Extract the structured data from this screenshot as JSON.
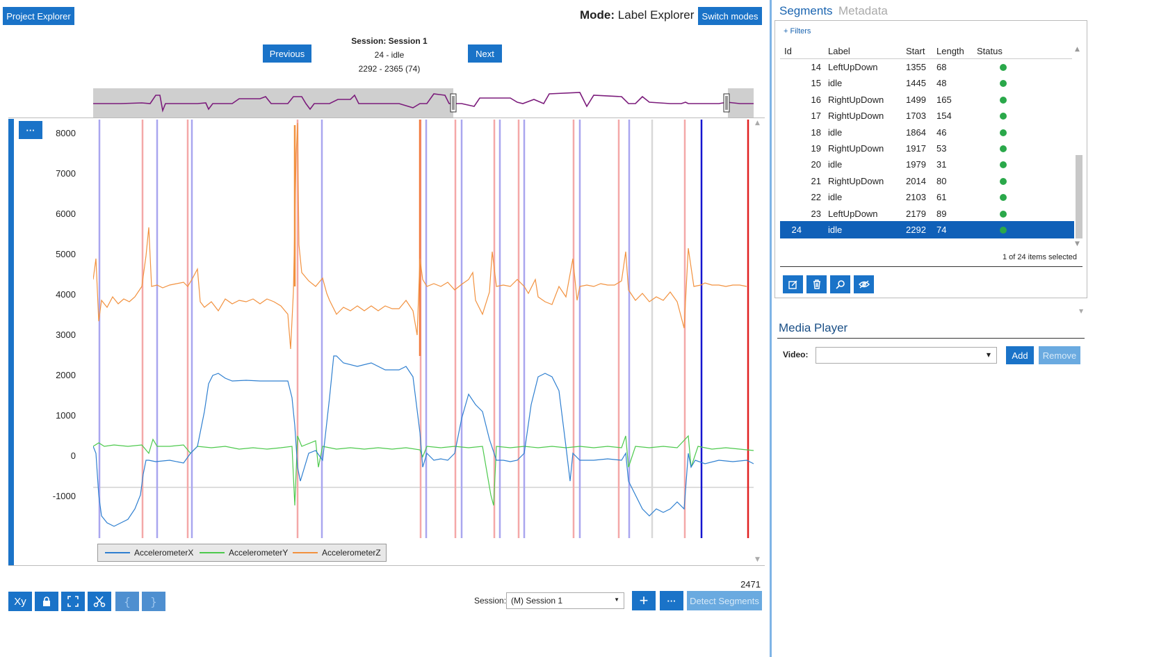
{
  "toolbar": {
    "project_explorer": "Project Explorer",
    "mode_label": "Mode:",
    "mode_value": "Label Explorer",
    "switch_modes": "Switch modes"
  },
  "session_nav": {
    "previous": "Previous",
    "next": "Next",
    "session_title": "Session: Session 1",
    "segment": "24 - idle",
    "range": "2292 - 2365 (74)"
  },
  "plot": {
    "more": "···",
    "y_ticks": [
      "8000",
      "7000",
      "6000",
      "5000",
      "4000",
      "3000",
      "2000",
      "1000",
      "0",
      "-1000"
    ],
    "legend": [
      {
        "name": "AccelerometerX",
        "color": "#2e7fd0"
      },
      {
        "name": "AccelerometerY",
        "color": "#4cc94c"
      },
      {
        "name": "AccelerometerZ",
        "color": "#f2913e"
      }
    ],
    "counter": "2471"
  },
  "bottom_bar": {
    "xy_icon": "Xy",
    "session_label": "Session:",
    "session_value": "(M) Session 1",
    "add": "+",
    "more": "···",
    "detect": "Detect Segments"
  },
  "segments_panel": {
    "tab_segments": "Segments",
    "tab_metadata": "Metadata",
    "filters": "+ Filters",
    "columns": [
      "Id",
      "Label",
      "Start",
      "Length",
      "Status"
    ],
    "rows": [
      {
        "id": "14",
        "label": "LeftUpDown",
        "start": "1355",
        "length": "68"
      },
      {
        "id": "15",
        "label": "idle",
        "start": "1445",
        "length": "48"
      },
      {
        "id": "16",
        "label": "RightUpDown",
        "start": "1499",
        "length": "165"
      },
      {
        "id": "17",
        "label": "RightUpDown",
        "start": "1703",
        "length": "154"
      },
      {
        "id": "18",
        "label": "idle",
        "start": "1864",
        "length": "46"
      },
      {
        "id": "19",
        "label": "RightUpDown",
        "start": "1917",
        "length": "53"
      },
      {
        "id": "20",
        "label": "idle",
        "start": "1979",
        "length": "31"
      },
      {
        "id": "21",
        "label": "RightUpDown",
        "start": "2014",
        "length": "80"
      },
      {
        "id": "22",
        "label": "idle",
        "start": "2103",
        "length": "61"
      },
      {
        "id": "23",
        "label": "LeftUpDown",
        "start": "2179",
        "length": "89"
      },
      {
        "id": "24",
        "label": "idle",
        "start": "2292",
        "length": "74"
      }
    ],
    "selected_index": 10,
    "status_color": "#2aa84a",
    "selection_info": "1 of 24 items selected"
  },
  "media_player": {
    "title": "Media Player",
    "video_label": "Video:",
    "add": "Add",
    "remove": "Remove"
  }
}
